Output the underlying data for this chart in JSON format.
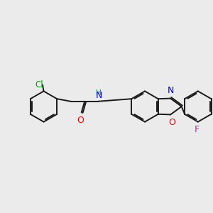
{
  "background_color": "#ebebeb",
  "bond_color": "#1a1a1a",
  "atom_colors": {
    "Cl": "#00aa00",
    "O": "#ff0000",
    "N": "#0000ff",
    "F": "#ff00cc",
    "H": "#007070",
    "C": "#1a1a1a"
  },
  "figsize": [
    3.0,
    3.0
  ],
  "dpi": 100,
  "xlim": [
    0,
    10
  ],
  "ylim": [
    3.0,
    8.0
  ]
}
